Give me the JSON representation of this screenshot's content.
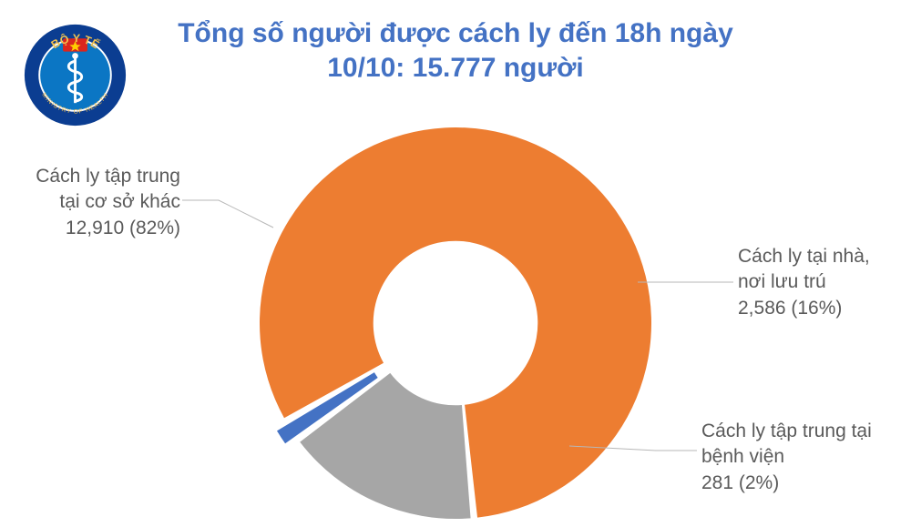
{
  "title": {
    "line1": "Tổng số người được cách ly đến 18h ngày",
    "line2": "10/10: 15.777 người",
    "fontsize": 30,
    "color": "#4472c4"
  },
  "logo": {
    "top_text": "BỘ Y TẾ",
    "bottom_text": "MINISTRY OF HEALTH",
    "ring_color": "#0b3d91",
    "inner_color": "#0b76c4",
    "flag_red": "#da251d",
    "flag_yellow": "#ffcd00"
  },
  "donut": {
    "type": "donut",
    "slices": [
      {
        "key": "other_facility",
        "value": 12910,
        "percent": 82,
        "color": "#ed7d31"
      },
      {
        "key": "home",
        "value": 2586,
        "percent": 16,
        "color": "#a6a6a6"
      },
      {
        "key": "hospital",
        "value": 281,
        "percent": 2,
        "color": "#4472c4"
      }
    ],
    "inner_radius_ratio": 0.42,
    "gap_deg": 2,
    "explode": {
      "hospital": 14
    },
    "start_angle_deg": 150,
    "background_color": "#ffffff"
  },
  "callouts": {
    "other_facility": {
      "line1": "Cách ly tập trung",
      "line2": "tại cơ sở khác",
      "line3": "12,910 (82%)"
    },
    "home": {
      "line1": "Cách ly tại nhà,",
      "line2": "nơi lưu trú",
      "line3": "2,586 (16%)"
    },
    "hospital": {
      "line1": "Cách ly tập trung tại",
      "line2": "bệnh viện",
      "line3": "281 (2%)"
    },
    "fontsize": 21,
    "color": "#5a5a5a",
    "leader_color": "#b7b7b7"
  }
}
